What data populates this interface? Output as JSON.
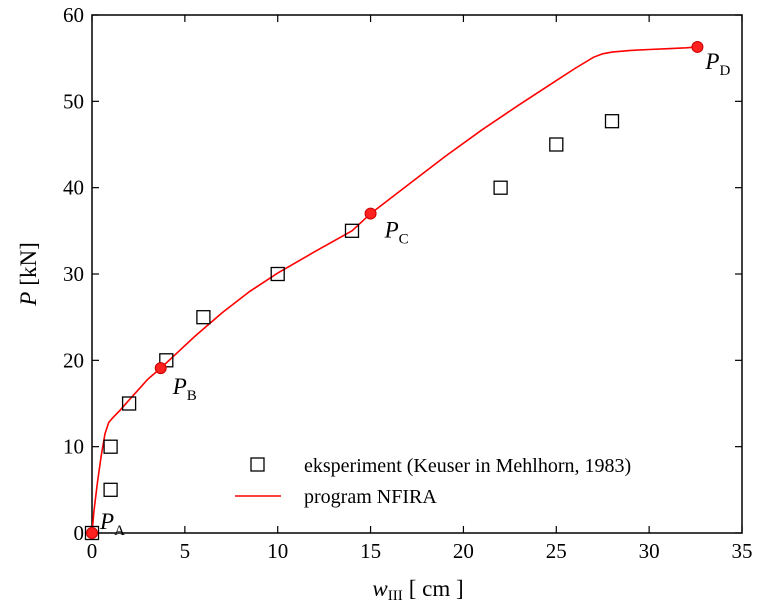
{
  "chart_data": {
    "type": "scatter",
    "xlabel": {
      "symbol": "w",
      "subscript": "III",
      "unit": "[ cm ]"
    },
    "ylabel": {
      "symbol": "P",
      "unit": "[kN]"
    },
    "xlim": [
      0,
      35
    ],
    "ylim": [
      0,
      60
    ],
    "xticks": [
      0,
      5,
      10,
      15,
      20,
      25,
      30,
      35
    ],
    "yticks": [
      0,
      10,
      20,
      30,
      40,
      50,
      60
    ],
    "grid": false,
    "legend_position": "bottom-right",
    "series": [
      {
        "name": "eksperiment (Keuser in Mehlhorn, 1983)",
        "type": "scatter",
        "marker": "open-square",
        "color": "#000000",
        "x": [
          0,
          1,
          1,
          2,
          4,
          6,
          10,
          14,
          22,
          25,
          28
        ],
        "y": [
          0,
          5,
          10,
          15,
          20,
          25,
          30,
          35,
          40,
          45,
          47.7
        ]
      },
      {
        "name": "program NFIRA",
        "type": "line",
        "color": "#ff0000",
        "x": [
          0,
          0.1,
          0.3,
          0.5,
          0.7,
          0.9,
          1.1,
          1.5,
          2.0,
          2.5,
          3.0,
          3.7,
          4.5,
          5.5,
          7.0,
          8.5,
          10.0,
          12.0,
          14.0,
          15.0,
          17.0,
          19.0,
          21.0,
          23.0,
          25.0,
          26.0,
          27.0,
          27.5,
          28.0,
          29.0,
          30.0,
          31.0,
          32.0,
          32.6
        ],
        "y": [
          0,
          2.5,
          6.0,
          9.0,
          11.5,
          12.8,
          13.3,
          14.2,
          15.4,
          16.6,
          17.8,
          19.1,
          20.7,
          22.7,
          25.5,
          28.0,
          30.1,
          32.6,
          35.0,
          37.0,
          40.3,
          43.6,
          46.7,
          49.6,
          52.4,
          53.8,
          55.1,
          55.5,
          55.7,
          55.9,
          56.0,
          56.1,
          56.2,
          56.3
        ]
      }
    ],
    "annotated_points": [
      {
        "label": "P",
        "subscript": "A",
        "x": 0,
        "y": 0
      },
      {
        "label": "P",
        "subscript": "B",
        "x": 3.7,
        "y": 19.1
      },
      {
        "label": "P",
        "subscript": "C",
        "x": 15.0,
        "y": 37.0
      },
      {
        "label": "P",
        "subscript": "D",
        "x": 32.6,
        "y": 56.3
      }
    ]
  }
}
